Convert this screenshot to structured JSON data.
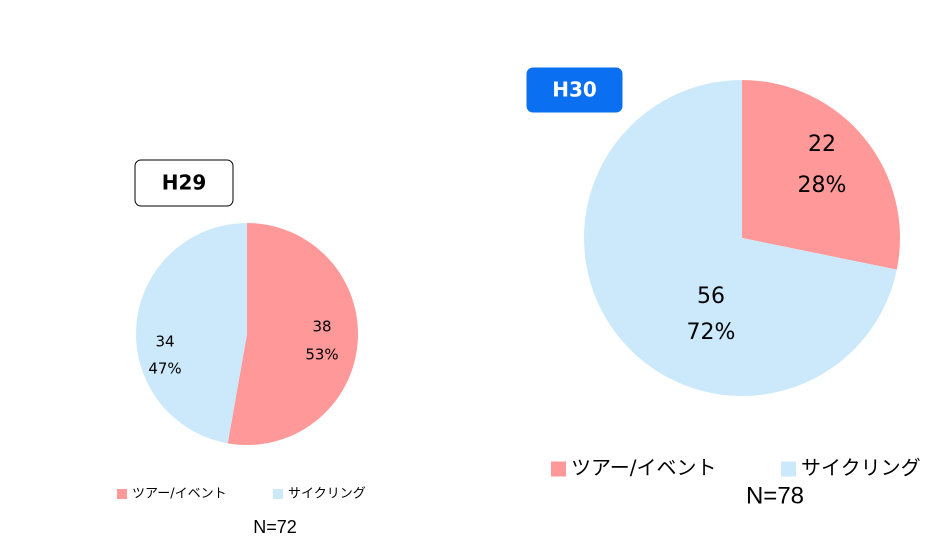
{
  "chart_data": [
    {
      "type": "pie",
      "title": "H29",
      "categories": [
        "ツアー/イベント",
        "サイクリング"
      ],
      "values": [
        38,
        34
      ],
      "percent_labels": [
        "53%",
        "47%"
      ],
      "colors": [
        "#ff9999",
        "#cce9fb"
      ],
      "note": "N=72"
    },
    {
      "type": "pie",
      "title": "H30",
      "categories": [
        "ツアー/イベント",
        "サイクリング"
      ],
      "values": [
        22,
        56
      ],
      "percent_labels": [
        "28%",
        "72%"
      ],
      "colors": [
        "#ff9999",
        "#cce9fb"
      ],
      "note": "N=78"
    }
  ]
}
